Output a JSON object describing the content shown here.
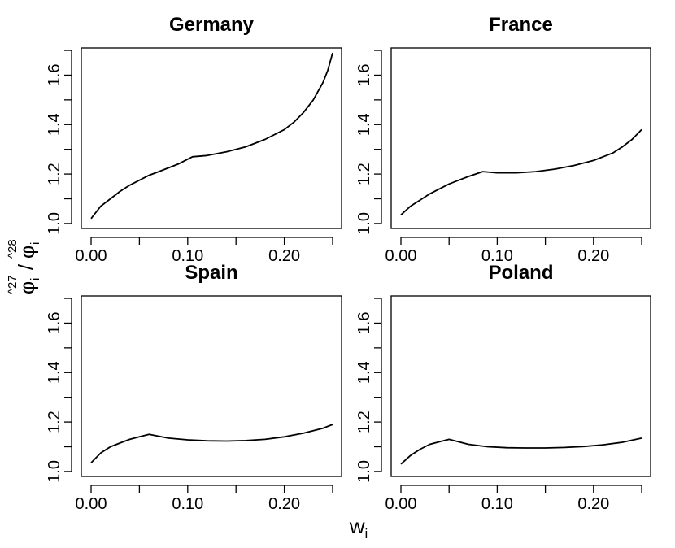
{
  "chart_data": {
    "type": "line",
    "layout": "2x2 panels",
    "xlabel": {
      "base": "w",
      "sub": "i"
    },
    "ylabel": {
      "num_hat": "^27",
      "num_base": "φ",
      "num_sub": "i",
      "slash": "/",
      "den_hat": "^28",
      "den_base": "φ",
      "den_sub": "i"
    },
    "xlim": [
      0.0,
      0.25
    ],
    "ylim": [
      0.98,
      1.71
    ],
    "x_ticks": [
      0.0,
      0.05,
      0.1,
      0.15,
      0.2,
      0.25
    ],
    "x_tick_labels": [
      {
        "value": 0.0,
        "label": "0.00"
      },
      {
        "value": 0.1,
        "label": "0.10"
      },
      {
        "value": 0.2,
        "label": "0.20"
      }
    ],
    "y_ticks": [
      1.0,
      1.1,
      1.2,
      1.3,
      1.4,
      1.5,
      1.6,
      1.7
    ],
    "y_tick_labels": [
      {
        "value": 1.0,
        "label": "1.0"
      },
      {
        "value": 1.2,
        "label": "1.2"
      },
      {
        "value": 1.4,
        "label": "1.4"
      },
      {
        "value": 1.6,
        "label": "1.6"
      }
    ],
    "grid": false,
    "line_color": "#000000",
    "panels": [
      {
        "title": "Germany",
        "x": [
          0.0,
          0.01,
          0.02,
          0.03,
          0.04,
          0.05,
          0.06,
          0.07,
          0.08,
          0.09,
          0.105,
          0.12,
          0.14,
          0.16,
          0.18,
          0.2,
          0.21,
          0.22,
          0.23,
          0.24,
          0.245,
          0.25
        ],
        "y": [
          1.02,
          1.07,
          1.1,
          1.13,
          1.155,
          1.175,
          1.195,
          1.21,
          1.225,
          1.24,
          1.27,
          1.275,
          1.29,
          1.31,
          1.34,
          1.38,
          1.41,
          1.45,
          1.5,
          1.57,
          1.62,
          1.69
        ]
      },
      {
        "title": "France",
        "x": [
          0.0,
          0.01,
          0.02,
          0.03,
          0.04,
          0.05,
          0.06,
          0.07,
          0.085,
          0.1,
          0.12,
          0.14,
          0.16,
          0.18,
          0.2,
          0.22,
          0.23,
          0.24,
          0.25
        ],
        "y": [
          1.035,
          1.07,
          1.095,
          1.12,
          1.14,
          1.16,
          1.175,
          1.19,
          1.21,
          1.205,
          1.205,
          1.21,
          1.22,
          1.235,
          1.255,
          1.285,
          1.31,
          1.34,
          1.38
        ]
      },
      {
        "title": "Spain",
        "x": [
          0.0,
          0.01,
          0.02,
          0.03,
          0.04,
          0.05,
          0.06,
          0.08,
          0.1,
          0.12,
          0.14,
          0.16,
          0.18,
          0.2,
          0.22,
          0.24,
          0.25
        ],
        "y": [
          1.035,
          1.075,
          1.1,
          1.115,
          1.13,
          1.14,
          1.15,
          1.135,
          1.128,
          1.124,
          1.123,
          1.125,
          1.13,
          1.14,
          1.155,
          1.175,
          1.19
        ]
      },
      {
        "title": "Poland",
        "x": [
          0.0,
          0.01,
          0.02,
          0.03,
          0.04,
          0.05,
          0.07,
          0.09,
          0.11,
          0.13,
          0.15,
          0.17,
          0.19,
          0.21,
          0.23,
          0.25
        ],
        "y": [
          1.03,
          1.065,
          1.09,
          1.11,
          1.12,
          1.13,
          1.11,
          1.1,
          1.096,
          1.095,
          1.095,
          1.097,
          1.101,
          1.108,
          1.118,
          1.135
        ]
      }
    ]
  }
}
